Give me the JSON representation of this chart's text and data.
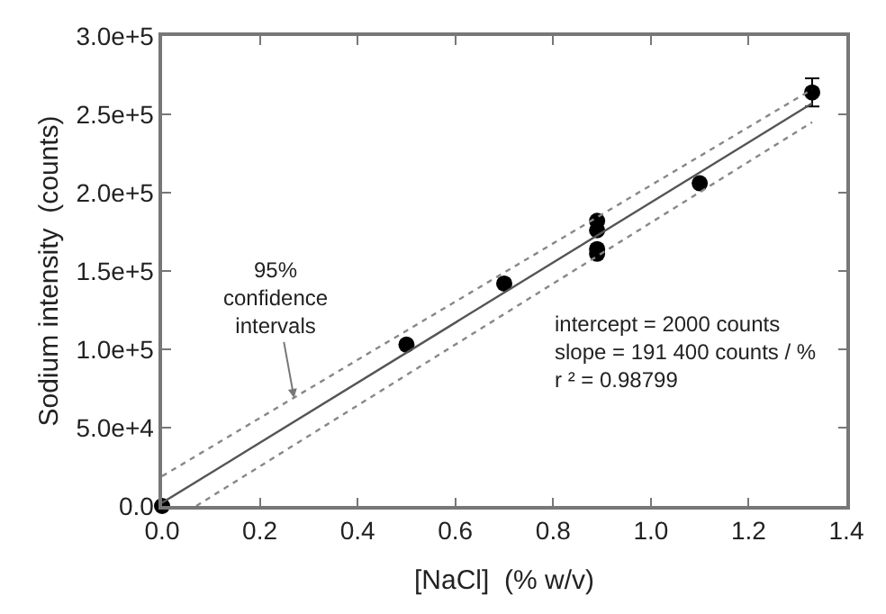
{
  "chart_data": {
    "type": "scatter",
    "xlabel": "[NaCl]  (% w/v)",
    "ylabel": "Sodium intensity  (counts)",
    "xlim": [
      0,
      1.4
    ],
    "xticks": [
      {
        "value": 0,
        "label": "0.0"
      },
      0.2,
      0.4,
      0.6,
      0.8,
      {
        "value": 1,
        "label": "1.0"
      },
      1.2,
      1.4
    ],
    "ylim": [
      0,
      300000
    ],
    "yticks": [
      {
        "value": 0,
        "label": "0.0"
      },
      {
        "value": 50000,
        "label": "5.0e+4"
      },
      {
        "value": 100000,
        "label": "1.0e+5"
      },
      {
        "value": 150000,
        "label": "1.5e+5"
      },
      {
        "value": 200000,
        "label": "2.0e+5"
      },
      {
        "value": 250000,
        "label": "2.5e+5"
      },
      {
        "value": 300000,
        "label": "3.0e+5"
      }
    ],
    "grid": false,
    "legend": false,
    "series": [
      {
        "marker": "circle",
        "color": "#000000",
        "x": [
          0,
          0.5,
          0.7,
          0.89,
          0.89,
          0.89,
          0.89,
          1.1,
          1.33
        ],
        "values": [
          0,
          103000,
          142000,
          182000,
          176000,
          164000,
          161000,
          206000,
          264000
        ],
        "errors": [
          null,
          null,
          null,
          null,
          null,
          null,
          null,
          null,
          9000
        ]
      },
      {
        "type": "line",
        "color": "#555555",
        "line_style": "solid",
        "x": [
          0,
          1.33
        ],
        "values": [
          2000,
          257000
        ]
      },
      {
        "type": "line",
        "color": "#888888",
        "line_style": "dotted",
        "x": [
          0,
          1.33
        ],
        "values": [
          19000,
          266000
        ]
      },
      {
        "type": "line",
        "color": "#888888",
        "line_style": "dotted",
        "x": [
          0.07,
          1.33
        ],
        "values": [
          0,
          245000
        ]
      }
    ],
    "annotations": [
      {
        "text": "95%\nconfidence\nintervals",
        "x": 0.27,
        "y": 69000
      },
      "intercept = 2000 counts\nslope = 191 400 counts / %\nr ² = 0.98799"
    ]
  }
}
